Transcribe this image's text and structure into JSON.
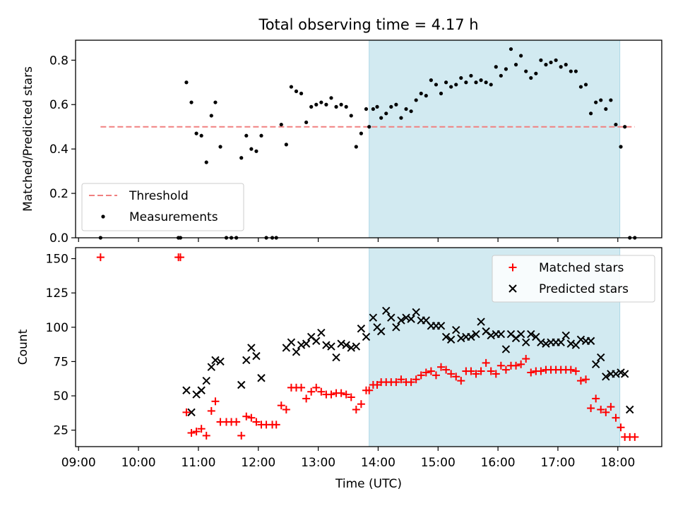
{
  "title": "Total observing time = 4.17 h",
  "colors": {
    "shade": "#add8e6",
    "threshold": "#f08080",
    "measurement": "#000000",
    "matched": "#ff0000",
    "predicted": "#000000"
  },
  "x_ticks": [
    "09:00",
    "10:00",
    "11:00",
    "12:00",
    "13:00",
    "14:00",
    "15:00",
    "16:00",
    "17:00",
    "18:00"
  ],
  "chart_data": [
    {
      "type": "scatter",
      "ylabel": "Matched/Predicted stars",
      "xlim": [
        "08:57",
        "18:44"
      ],
      "ylim": [
        0,
        0.89
      ],
      "y_ticks": [
        "0.0",
        "0.2",
        "0.4",
        "0.6",
        "0.8"
      ],
      "shaded_interval": [
        "13:51",
        "18:02"
      ],
      "legend": {
        "position": "lower-left",
        "entries": [
          "Threshold",
          "Measurements"
        ]
      },
      "threshold": {
        "name": "Threshold",
        "x": [
          "09:22",
          "18:17"
        ],
        "y": 0.5,
        "style": "dashed"
      },
      "series": [
        {
          "name": "Measurements",
          "marker": "dot",
          "x": [
            "09:22",
            "10:40",
            "10:42",
            "10:48",
            "10:53",
            "10:58",
            "11:03",
            "11:08",
            "11:13",
            "11:17",
            "11:22",
            "11:28",
            "11:33",
            "11:38",
            "11:43",
            "11:48",
            "11:53",
            "11:58",
            "12:03",
            "12:08",
            "12:14",
            "12:18",
            "12:23",
            "12:28",
            "12:33",
            "12:38",
            "12:43",
            "12:48",
            "12:53",
            "12:58",
            "13:03",
            "13:08",
            "13:13",
            "13:18",
            "13:23",
            "13:28",
            "13:33",
            "13:38",
            "13:43",
            "13:48",
            "13:51",
            "13:55",
            "13:59",
            "14:03",
            "14:08",
            "14:13",
            "14:18",
            "14:23",
            "14:28",
            "14:33",
            "14:38",
            "14:43",
            "14:48",
            "14:53",
            "14:58",
            "15:03",
            "15:08",
            "15:13",
            "15:18",
            "15:23",
            "15:28",
            "15:33",
            "15:38",
            "15:43",
            "15:48",
            "15:53",
            "15:58",
            "16:03",
            "16:08",
            "16:13",
            "16:18",
            "16:23",
            "16:28",
            "16:33",
            "16:38",
            "16:43",
            "16:48",
            "16:53",
            "16:58",
            "17:03",
            "17:08",
            "17:13",
            "17:18",
            "17:23",
            "17:28",
            "17:33",
            "17:38",
            "17:43",
            "17:48",
            "17:53",
            "17:58",
            "18:03",
            "18:07",
            "18:12",
            "18:17"
          ],
          "y": [
            0.0,
            0.0,
            0.0,
            0.7,
            0.61,
            0.47,
            0.46,
            0.34,
            0.55,
            0.61,
            0.41,
            0.0,
            0.0,
            0.0,
            0.36,
            0.46,
            0.4,
            0.39,
            0.46,
            0.0,
            0.0,
            0.0,
            0.51,
            0.42,
            0.68,
            0.66,
            0.65,
            0.52,
            0.59,
            0.6,
            0.61,
            0.6,
            0.63,
            0.59,
            0.6,
            0.59,
            0.55,
            0.41,
            0.47,
            0.58,
            0.5,
            0.58,
            0.59,
            0.54,
            0.56,
            0.59,
            0.6,
            0.54,
            0.58,
            0.57,
            0.62,
            0.65,
            0.64,
            0.71,
            0.69,
            0.65,
            0.7,
            0.68,
            0.69,
            0.72,
            0.7,
            0.73,
            0.7,
            0.71,
            0.7,
            0.69,
            0.77,
            0.73,
            0.76,
            0.85,
            0.78,
            0.82,
            0.75,
            0.72,
            0.74,
            0.8,
            0.78,
            0.79,
            0.8,
            0.77,
            0.78,
            0.75,
            0.75,
            0.68,
            0.69,
            0.56,
            0.61,
            0.62,
            0.58,
            0.62,
            0.51,
            0.41,
            0.5,
            0.0,
            0.0
          ]
        }
      ]
    },
    {
      "type": "scatter",
      "xlabel": "Time (UTC)",
      "ylabel": "Count",
      "xlim": [
        "08:57",
        "18:44"
      ],
      "ylim": [
        13,
        158
      ],
      "y_ticks": [
        "25",
        "50",
        "75",
        "100",
        "125",
        "150"
      ],
      "shaded_interval": [
        "13:51",
        "18:02"
      ],
      "legend": {
        "position": "upper-right",
        "entries": [
          "Matched stars",
          "Predicted stars"
        ]
      },
      "series": [
        {
          "name": "Matched stars",
          "marker": "plus",
          "x": [
            "09:22",
            "10:40",
            "10:42",
            "10:48",
            "10:53",
            "10:58",
            "11:03",
            "11:08",
            "11:13",
            "11:17",
            "11:22",
            "11:28",
            "11:33",
            "11:38",
            "11:43",
            "11:48",
            "11:53",
            "11:58",
            "12:03",
            "12:08",
            "12:14",
            "12:18",
            "12:23",
            "12:28",
            "12:33",
            "12:38",
            "12:43",
            "12:48",
            "12:53",
            "12:58",
            "13:03",
            "13:08",
            "13:13",
            "13:18",
            "13:23",
            "13:28",
            "13:33",
            "13:38",
            "13:43",
            "13:48",
            "13:51",
            "13:55",
            "13:59",
            "14:03",
            "14:08",
            "14:13",
            "14:18",
            "14:23",
            "14:28",
            "14:33",
            "14:38",
            "14:43",
            "14:48",
            "14:53",
            "14:58",
            "15:03",
            "15:08",
            "15:13",
            "15:18",
            "15:23",
            "15:28",
            "15:33",
            "15:38",
            "15:43",
            "15:48",
            "15:53",
            "15:58",
            "16:03",
            "16:08",
            "16:13",
            "16:18",
            "16:23",
            "16:28",
            "16:33",
            "16:38",
            "16:43",
            "16:48",
            "16:53",
            "16:58",
            "17:03",
            "17:08",
            "17:13",
            "17:18",
            "17:23",
            "17:28",
            "17:33",
            "17:38",
            "17:43",
            "17:48",
            "17:53",
            "17:58",
            "18:03",
            "18:07",
            "18:12",
            "18:17"
          ],
          "y": [
            151,
            151,
            151,
            38,
            23,
            24,
            26,
            21,
            39,
            46,
            31,
            31,
            31,
            31,
            21,
            35,
            34,
            31,
            29,
            29,
            29,
            29,
            43,
            40,
            56,
            56,
            56,
            48,
            53,
            56,
            53,
            51,
            51,
            52,
            52,
            51,
            49,
            40,
            44,
            54,
            54,
            58,
            58,
            60,
            60,
            60,
            60,
            62,
            60,
            60,
            62,
            65,
            67,
            68,
            65,
            71,
            69,
            66,
            64,
            61,
            68,
            68,
            66,
            68,
            74,
            68,
            66,
            72,
            69,
            72,
            72,
            73,
            77,
            67,
            68,
            68,
            69,
            69,
            69,
            69,
            69,
            69,
            68,
            61,
            62,
            41,
            48,
            40,
            38,
            42,
            34,
            27,
            20,
            20,
            20
          ]
        },
        {
          "name": "Predicted stars",
          "marker": "x",
          "x": [
            "10:48",
            "10:53",
            "10:58",
            "11:03",
            "11:08",
            "11:13",
            "11:17",
            "11:22",
            "11:43",
            "11:48",
            "11:53",
            "11:58",
            "12:03",
            "12:28",
            "12:33",
            "12:38",
            "12:43",
            "12:48",
            "12:53",
            "12:58",
            "13:03",
            "13:08",
            "13:13",
            "13:18",
            "13:23",
            "13:28",
            "13:33",
            "13:38",
            "13:43",
            "13:48",
            "13:55",
            "13:59",
            "14:03",
            "14:08",
            "14:13",
            "14:18",
            "14:23",
            "14:28",
            "14:33",
            "14:38",
            "14:43",
            "14:48",
            "14:53",
            "14:58",
            "15:03",
            "15:08",
            "15:13",
            "15:18",
            "15:23",
            "15:28",
            "15:33",
            "15:38",
            "15:43",
            "15:48",
            "15:53",
            "15:58",
            "16:03",
            "16:08",
            "16:13",
            "16:18",
            "16:23",
            "16:28",
            "16:33",
            "16:38",
            "16:43",
            "16:48",
            "16:53",
            "16:58",
            "17:03",
            "17:08",
            "17:13",
            "17:18",
            "17:23",
            "17:28",
            "17:33",
            "17:38",
            "17:43",
            "17:48",
            "17:53",
            "17:58",
            "18:03",
            "18:07",
            "18:12"
          ],
          "y": [
            54,
            38,
            51,
            54,
            61,
            71,
            76,
            75,
            58,
            76,
            85,
            79,
            63,
            85,
            89,
            82,
            87,
            88,
            93,
            90,
            96,
            87,
            86,
            78,
            88,
            87,
            85,
            86,
            99,
            93,
            107,
            100,
            97,
            112,
            107,
            100,
            105,
            107,
            106,
            111,
            105,
            105,
            101,
            101,
            101,
            93,
            91,
            98,
            92,
            93,
            93,
            95,
            104,
            97,
            94,
            95,
            95,
            84,
            95,
            92,
            95,
            89,
            95,
            93,
            89,
            88,
            89,
            89,
            89,
            94,
            88,
            87,
            91,
            90,
            90,
            73,
            78,
            64,
            66,
            66,
            67,
            66,
            40
          ]
        }
      ]
    }
  ]
}
